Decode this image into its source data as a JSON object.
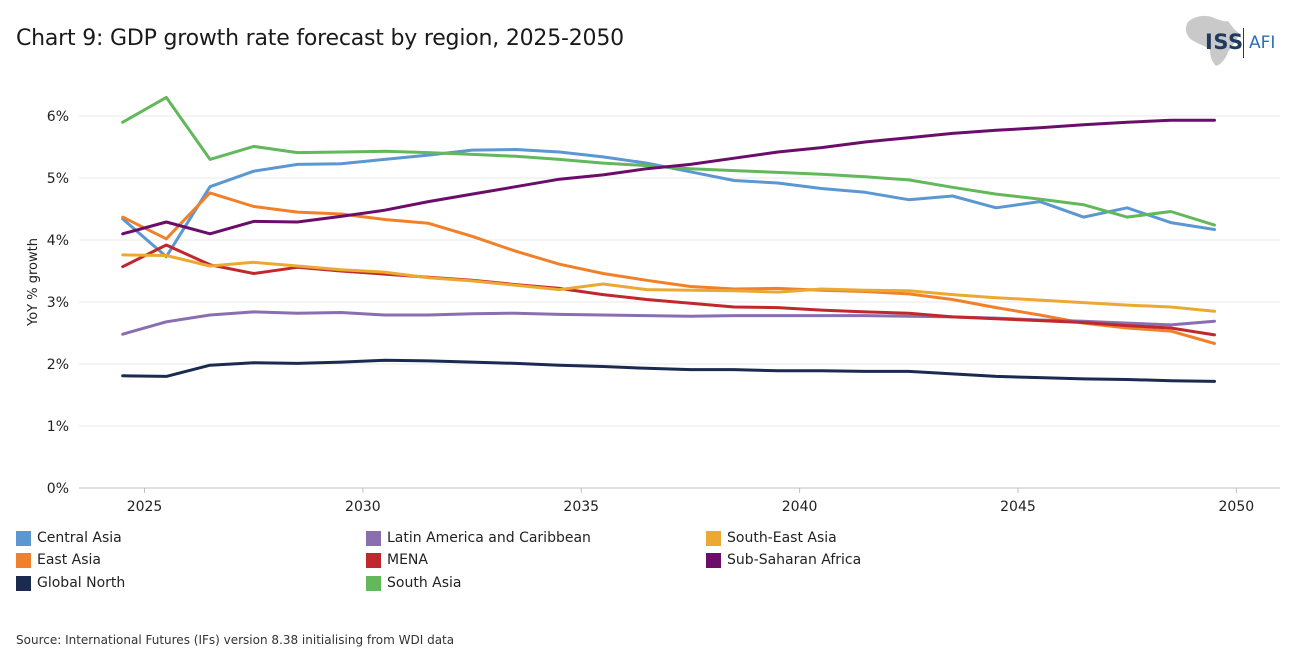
{
  "header": {
    "title": "Chart 9: GDP growth rate forecast by region, 2025-2050",
    "logo_iss": "ISS",
    "logo_afi": "AFI"
  },
  "source": "Source: International Futures (IFs) version 8.38 initialising from WDI data",
  "chart_data": {
    "type": "line",
    "title": "Chart 9: GDP growth rate forecast by region, 2025-2050",
    "xlabel": "",
    "ylabel": "YoY % growth",
    "xlim": [
      2023.5,
      2051
    ],
    "ylim": [
      0,
      6.5
    ],
    "grid": true,
    "legend_position": "bottom",
    "x_ticks": [
      2025,
      2030,
      2035,
      2040,
      2045,
      2050
    ],
    "y_ticks": [
      0,
      1,
      2,
      3,
      4,
      5,
      6
    ],
    "y_tick_labels": [
      "0%",
      "1%",
      "2%",
      "3%",
      "4%",
      "5%",
      "6%"
    ],
    "x": [
      2024.5,
      2025.5,
      2026.5,
      2027.5,
      2028.5,
      2029.5,
      2030.5,
      2031.5,
      2032.5,
      2033.5,
      2034.5,
      2035.5,
      2036.5,
      2037.5,
      2038.5,
      2039.5,
      2040.5,
      2041.5,
      2042.5,
      2043.5,
      2044.5,
      2045.5,
      2046.5,
      2047.5,
      2048.5,
      2049.5
    ],
    "series": [
      {
        "name": "Central Asia",
        "color": "#5b97d1",
        "values": [
          4.34,
          3.73,
          4.86,
          5.11,
          5.22,
          5.23,
          5.3,
          5.37,
          5.45,
          5.46,
          5.42,
          5.34,
          5.24,
          5.1,
          4.96,
          4.92,
          4.83,
          4.77,
          4.65,
          4.71,
          4.52,
          4.62,
          4.37,
          4.52,
          4.28,
          4.17
        ]
      },
      {
        "name": "East Asia",
        "color": "#f0802a",
        "values": [
          4.37,
          4.02,
          4.76,
          4.54,
          4.45,
          4.42,
          4.33,
          4.27,
          4.06,
          3.82,
          3.61,
          3.46,
          3.35,
          3.25,
          3.21,
          3.22,
          3.19,
          3.17,
          3.13,
          3.04,
          2.91,
          2.79,
          2.66,
          2.58,
          2.53,
          2.33
        ]
      },
      {
        "name": "Global North",
        "color": "#1b2a4f",
        "values": [
          1.81,
          1.8,
          1.98,
          2.02,
          2.01,
          2.03,
          2.06,
          2.05,
          2.03,
          2.01,
          1.98,
          1.96,
          1.93,
          1.91,
          1.91,
          1.89,
          1.89,
          1.88,
          1.88,
          1.84,
          1.8,
          1.78,
          1.76,
          1.75,
          1.73,
          1.72
        ]
      },
      {
        "name": "Latin America and Caribbean",
        "color": "#8a6fb0",
        "values": [
          2.48,
          2.68,
          2.79,
          2.84,
          2.82,
          2.83,
          2.79,
          2.79,
          2.81,
          2.82,
          2.8,
          2.79,
          2.78,
          2.77,
          2.78,
          2.78,
          2.78,
          2.78,
          2.77,
          2.76,
          2.74,
          2.71,
          2.69,
          2.66,
          2.63,
          2.69
        ]
      },
      {
        "name": "MENA",
        "color": "#c1282d",
        "values": [
          3.57,
          3.92,
          3.6,
          3.46,
          3.56,
          3.5,
          3.45,
          3.4,
          3.35,
          3.28,
          3.22,
          3.12,
          3.04,
          2.98,
          2.92,
          2.91,
          2.87,
          2.84,
          2.82,
          2.76,
          2.73,
          2.7,
          2.67,
          2.62,
          2.58,
          2.47
        ]
      },
      {
        "name": "South Asia",
        "color": "#62b85a",
        "values": [
          5.9,
          6.3,
          5.3,
          5.51,
          5.41,
          5.42,
          5.43,
          5.41,
          5.38,
          5.35,
          5.3,
          5.24,
          5.2,
          5.15,
          5.12,
          5.09,
          5.06,
          5.02,
          4.97,
          4.85,
          4.74,
          4.66,
          4.57,
          4.37,
          4.46,
          4.24
        ]
      },
      {
        "name": "South-East Asia",
        "color": "#eba832",
        "values": [
          3.76,
          3.75,
          3.58,
          3.64,
          3.58,
          3.52,
          3.48,
          3.39,
          3.34,
          3.27,
          3.2,
          3.29,
          3.2,
          3.19,
          3.18,
          3.16,
          3.21,
          3.19,
          3.18,
          3.12,
          3.07,
          3.03,
          2.99,
          2.95,
          2.92,
          2.85
        ]
      },
      {
        "name": "Sub-Saharan Africa",
        "color": "#6b0d6b",
        "values": [
          4.1,
          4.29,
          4.1,
          4.3,
          4.29,
          4.38,
          4.48,
          4.62,
          4.74,
          4.86,
          4.98,
          5.05,
          5.15,
          5.22,
          5.32,
          5.42,
          5.49,
          5.58,
          5.65,
          5.72,
          5.77,
          5.81,
          5.86,
          5.9,
          5.93,
          5.93
        ]
      }
    ]
  },
  "legend": {
    "items": [
      {
        "label": "Central Asia",
        "color": "#5b97d1"
      },
      {
        "label": "East Asia",
        "color": "#f0802a"
      },
      {
        "label": "Global North",
        "color": "#1b2a4f"
      },
      {
        "label": "Latin America and Caribbean",
        "color": "#8a6fb0"
      },
      {
        "label": "MENA",
        "color": "#c1282d"
      },
      {
        "label": "South Asia",
        "color": "#62b85a"
      },
      {
        "label": "South-East Asia",
        "color": "#eba832"
      },
      {
        "label": "Sub-Saharan Africa",
        "color": "#6b0d6b"
      }
    ]
  }
}
